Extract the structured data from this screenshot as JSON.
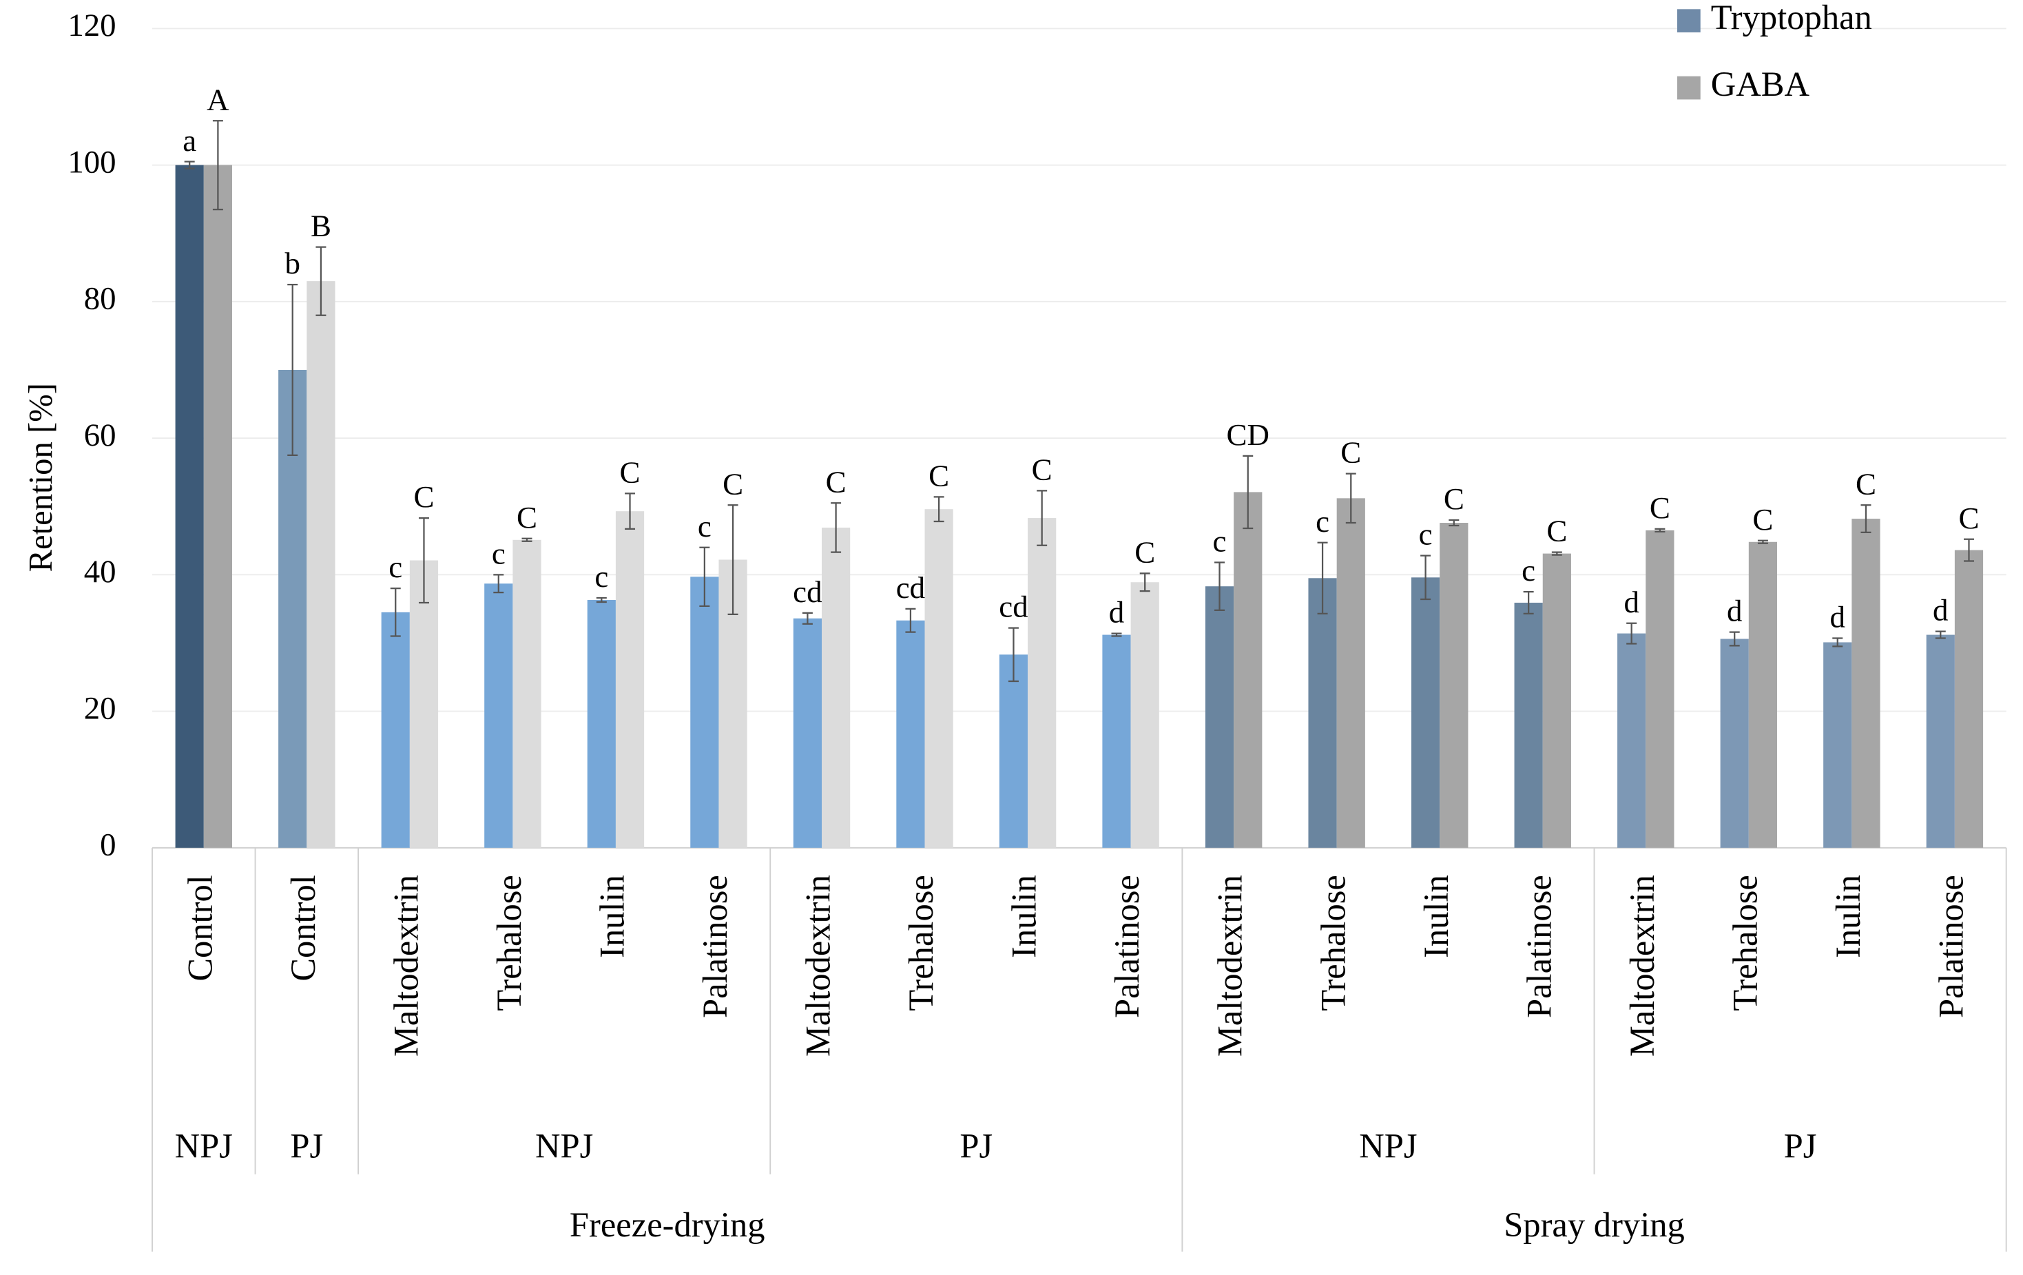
{
  "chart_data": {
    "type": "grouped-bar",
    "ylabel": "Retention [%]",
    "ylim": [
      0,
      120
    ],
    "yticks": [
      0,
      20,
      40,
      60,
      80,
      100,
      120
    ],
    "grid": true,
    "legend": "top-right",
    "groups": [
      {
        "label": "Freeze-drying",
        "subgroups": [
          {
            "label": "NPJ",
            "categories": [
              "Control"
            ]
          },
          {
            "label": "PJ",
            "categories": [
              "Control"
            ]
          },
          {
            "label": "NPJ",
            "categories": [
              "Maltodextrin",
              "Trehalose",
              "Inulin",
              "Palatinose"
            ]
          },
          {
            "label": "PJ",
            "categories": [
              "Maltodextrin",
              "Trehalose",
              "Inulin",
              "Palatinose"
            ]
          }
        ]
      },
      {
        "label": "Spray drying",
        "subgroups": [
          {
            "label": "NPJ",
            "categories": [
              "Maltodextrin",
              "Trehalose",
              "Inulin",
              "Palatinose"
            ]
          },
          {
            "label": "PJ",
            "categories": [
              "Maltodextrin",
              "Trehalose",
              "Inulin",
              "Palatinose"
            ]
          }
        ]
      }
    ],
    "series": [
      {
        "name": "Tryptophan",
        "color": "#6f8aa8",
        "colors": [
          "#3d5a78",
          "#7a9ab8",
          "#76a7d8",
          "#76a7d8",
          "#76a7d8",
          "#76a7d8",
          "#76a7d8",
          "#76a7d8",
          "#76a7d8",
          "#76a7d8",
          "#6a859f",
          "#6a859f",
          "#6a859f",
          "#6a859f",
          "#7d98b5",
          "#7d98b5",
          "#7d98b5",
          "#7d98b5"
        ],
        "values": [
          100,
          70,
          34.5,
          38.7,
          36.3,
          39.7,
          33.6,
          33.3,
          28.3,
          31.2,
          38.3,
          39.5,
          39.6,
          35.9,
          31.4,
          30.6,
          30.1,
          31.2
        ],
        "errors": [
          0.5,
          12.5,
          3.5,
          1.3,
          0.3,
          4.3,
          0.8,
          1.7,
          3.9,
          0.2,
          3.5,
          5.2,
          3.2,
          1.6,
          1.5,
          1.0,
          0.6,
          0.5
        ],
        "letters": [
          "a",
          "b",
          "c",
          "c",
          "c",
          "c",
          "cd",
          "cd",
          "cd",
          "d",
          "c",
          "c",
          "c",
          "c",
          "d",
          "d",
          "d",
          "d"
        ]
      },
      {
        "name": "GABA",
        "color": "#a6a6a6",
        "colors": [
          "#a6a6a6",
          "#d9d9d9",
          "#dcdcdc",
          "#dcdcdc",
          "#dcdcdc",
          "#dcdcdc",
          "#dcdcdc",
          "#dcdcdc",
          "#dcdcdc",
          "#dcdcdc",
          "#a6a6a6",
          "#a6a6a6",
          "#a6a6a6",
          "#a6a6a6",
          "#a6a6a6",
          "#a6a6a6",
          "#a6a6a6",
          "#a6a6a6"
        ],
        "values": [
          100,
          83,
          42.1,
          45.1,
          49.3,
          42.2,
          46.9,
          49.6,
          48.3,
          38.9,
          52.1,
          51.2,
          47.6,
          43.1,
          46.5,
          44.8,
          48.2,
          43.6
        ],
        "errors": [
          6.5,
          5,
          6.2,
          0.2,
          2.6,
          8,
          3.6,
          1.8,
          4.0,
          1.3,
          5.3,
          3.6,
          0.4,
          0.2,
          0.2,
          0.2,
          2.0,
          1.6
        ],
        "letters": [
          "A",
          "B",
          "C",
          "C",
          "C",
          "C",
          "C",
          "C",
          "C",
          "C",
          "CD",
          "C",
          "C",
          "C",
          "C",
          "C",
          "C",
          "C"
        ]
      }
    ]
  }
}
